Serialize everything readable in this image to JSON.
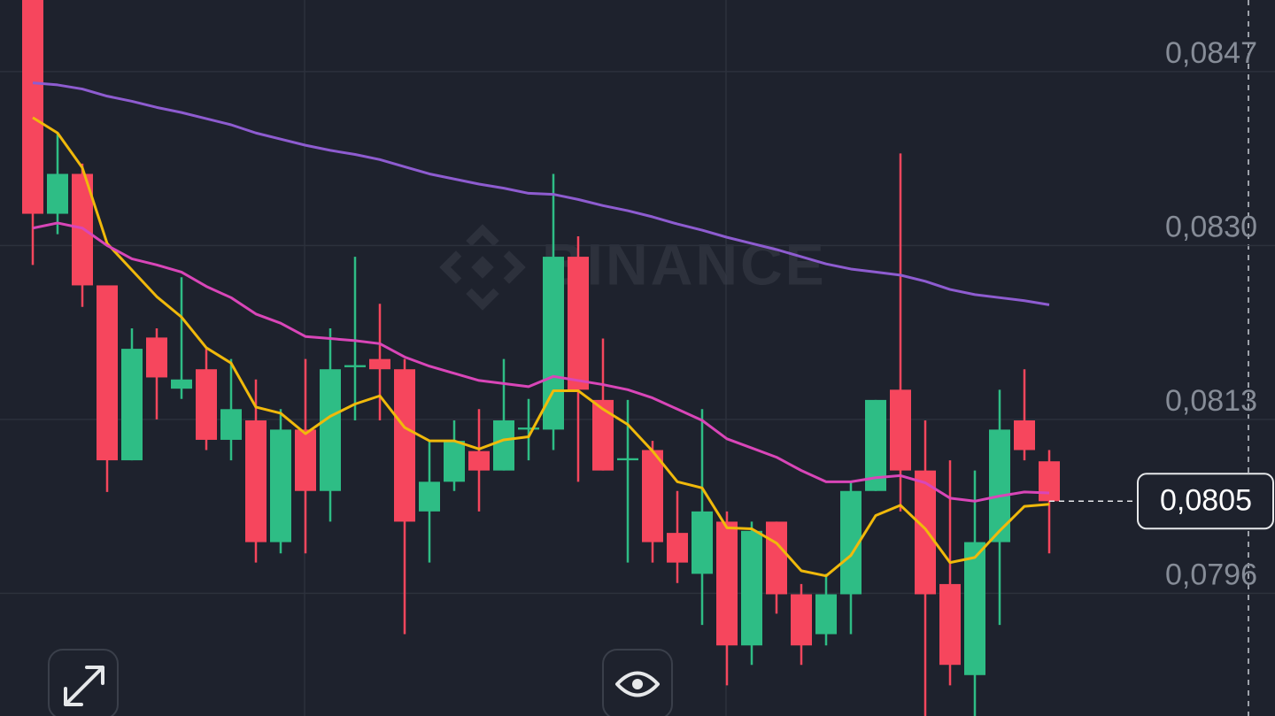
{
  "chart_data": {
    "type": "candlestick",
    "watermark": "BINANCE",
    "ylim": [
      0.0784,
      0.0854
    ],
    "yticks": [
      {
        "value": 0.0847,
        "label": "0,0847"
      },
      {
        "value": 0.083,
        "label": "0,0830"
      },
      {
        "value": 0.0813,
        "label": "0,0813"
      },
      {
        "value": 0.0796,
        "label": "0,0796"
      }
    ],
    "grid": true,
    "up_color": "#2ebd85",
    "down_color": "#f6465d",
    "current_price": {
      "value": 0.0805,
      "label": "0,0805"
    },
    "open": [
      0.0854,
      0.08331,
      0.0837,
      0.08261,
      0.0809,
      0.0821,
      0.0816,
      0.08179,
      0.0811,
      0.08129,
      0.0801,
      0.0812,
      0.0806,
      0.08181,
      0.08189,
      0.08179,
      0.0804,
      0.08069,
      0.08099,
      0.0808,
      0.0812,
      0.0812,
      0.08289,
      0.08149,
      0.0809,
      0.081,
      0.08019,
      0.07979,
      0.0803,
      0.07909,
      0.0803,
      0.07959,
      0.0792,
      0.07959,
      0.0806,
      0.08159,
      0.0808,
      0.07969,
      0.0788,
      0.0801,
      0.08129,
      0.08089
    ],
    "high": [
      0.0854,
      0.0841,
      0.0838,
      0.08261,
      0.08219,
      0.08219,
      0.08269,
      0.08199,
      0.08189,
      0.08169,
      0.0814,
      0.08189,
      0.08219,
      0.08289,
      0.08243,
      0.08189,
      0.08109,
      0.08129,
      0.0814,
      0.08189,
      0.0815,
      0.0837,
      0.08309,
      0.08209,
      0.08149,
      0.08109,
      0.0806,
      0.0814,
      0.0804,
      0.0803,
      0.0803,
      0.07969,
      0.07979,
      0.08069,
      0.08149,
      0.0839,
      0.08129,
      0.0809,
      0.0808,
      0.08159,
      0.08179,
      0.081
    ],
    "low": [
      0.08281,
      0.08311,
      0.0824,
      0.08059,
      0.0809,
      0.0813,
      0.0815,
      0.081,
      0.0809,
      0.0799,
      0.07999,
      0.07999,
      0.0803,
      0.08129,
      0.08129,
      0.0792,
      0.0799,
      0.0806,
      0.0804,
      0.0808,
      0.0809,
      0.081,
      0.08069,
      0.0808,
      0.0799,
      0.0799,
      0.0797,
      0.07929,
      0.0787,
      0.0789,
      0.0794,
      0.0789,
      0.07909,
      0.0792,
      0.0806,
      0.0804,
      0.0784,
      0.0787,
      0.0784,
      0.07929,
      0.0809,
      0.07999
    ],
    "close": [
      0.08331,
      0.0837,
      0.08261,
      0.0809,
      0.08199,
      0.08171,
      0.08169,
      0.0811,
      0.0814,
      0.0801,
      0.0812,
      0.0806,
      0.08179,
      0.08183,
      0.08179,
      0.0803,
      0.08069,
      0.08109,
      0.0808,
      0.08129,
      0.08122,
      0.08289,
      0.08159,
      0.0808,
      0.08092,
      0.0801,
      0.0799,
      0.0804,
      0.07909,
      0.08021,
      0.07959,
      0.07909,
      0.07959,
      0.0806,
      0.08149,
      0.0808,
      0.07959,
      0.0789,
      0.0801,
      0.0812,
      0.081,
      0.0805
    ],
    "overlays": [
      {
        "color": "#f0b90b",
        "values": [
          0.08425,
          0.0841,
          0.08376,
          0.08302,
          0.08276,
          0.0825,
          0.0823,
          0.082,
          0.08185,
          0.08142,
          0.08136,
          0.08116,
          0.08133,
          0.08145,
          0.08153,
          0.08122,
          0.08109,
          0.08109,
          0.08101,
          0.0811,
          0.08113,
          0.08158,
          0.08158,
          0.0814,
          0.08125,
          0.08099,
          0.08069,
          0.08063,
          0.08024,
          0.08023,
          0.08009,
          0.07982,
          0.07977,
          0.07997,
          0.08036,
          0.08046,
          0.08023,
          0.0799,
          0.07995,
          0.08021,
          0.08045,
          0.08047
        ]
      },
      {
        "color": "#d946b8",
        "values": [
          0.08317,
          0.08322,
          0.08317,
          0.083,
          0.08287,
          0.08281,
          0.08274,
          0.0826,
          0.08249,
          0.08233,
          0.08224,
          0.08211,
          0.08209,
          0.08207,
          0.08204,
          0.08191,
          0.08182,
          0.08175,
          0.08168,
          0.08165,
          0.08162,
          0.08172,
          0.08168,
          0.08164,
          0.08159,
          0.08151,
          0.0814,
          0.08129,
          0.08111,
          0.08102,
          0.08093,
          0.0808,
          0.08069,
          0.08069,
          0.08073,
          0.08075,
          0.08068,
          0.08053,
          0.0805,
          0.08055,
          0.08059,
          0.08058
        ]
      },
      {
        "color": "#8e5cd0",
        "values": [
          0.08459,
          0.08457,
          0.08453,
          0.08446,
          0.08441,
          0.08435,
          0.0843,
          0.08424,
          0.08418,
          0.0841,
          0.08404,
          0.08398,
          0.08393,
          0.08389,
          0.08384,
          0.08377,
          0.0837,
          0.08365,
          0.0836,
          0.08356,
          0.08351,
          0.0835,
          0.08345,
          0.08339,
          0.08334,
          0.08328,
          0.08321,
          0.08315,
          0.08308,
          0.08302,
          0.08296,
          0.08289,
          0.08282,
          0.08277,
          0.08274,
          0.08271,
          0.08265,
          0.08257,
          0.08252,
          0.08249,
          0.08246,
          0.08242
        ]
      }
    ]
  }
}
